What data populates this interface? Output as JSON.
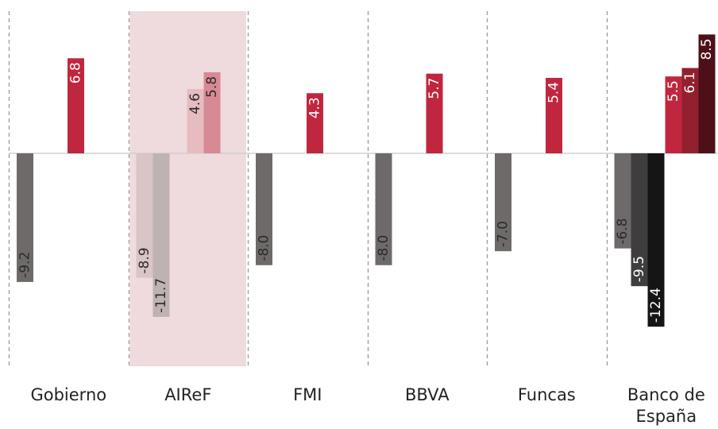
{
  "chart_data": {
    "type": "bar",
    "title": "",
    "xlabel": "",
    "ylabel": "",
    "ylim": [
      -13,
      8.9
    ],
    "grid": false,
    "categories": [
      "Gobierno",
      "AIReF",
      "FMI",
      "BBVA",
      "Funcas",
      "Banco de España"
    ],
    "highlighted_category": "AIReF",
    "groups": [
      {
        "category": "Gobierno",
        "negatives": [
          {
            "value": -9.2,
            "label": "-9.2",
            "color": "#6e6a6a"
          }
        ],
        "positives": [
          {
            "value": 6.8,
            "label": "6.8",
            "color": "#c0273e"
          }
        ]
      },
      {
        "category": "AIReF",
        "negatives": [
          {
            "value": -8.9,
            "label": "-8.9",
            "color": "#d9c4c6"
          },
          {
            "value": -11.7,
            "label": "-11.7",
            "color": "#bfb2b3"
          }
        ],
        "positives": [
          {
            "value": 4.6,
            "label": "4.6",
            "color": "#e6bcc1"
          },
          {
            "value": 5.8,
            "label": "5.8",
            "color": "#d78a94"
          }
        ]
      },
      {
        "category": "FMI",
        "negatives": [
          {
            "value": -8.0,
            "label": "-8.0",
            "color": "#6e6a6a"
          }
        ],
        "positives": [
          {
            "value": 4.3,
            "label": "4.3",
            "color": "#c0273e"
          }
        ]
      },
      {
        "category": "BBVA",
        "negatives": [
          {
            "value": -8.0,
            "label": "-8.0",
            "color": "#6e6a6a"
          }
        ],
        "positives": [
          {
            "value": 5.7,
            "label": "5.7",
            "color": "#c0273e"
          }
        ]
      },
      {
        "category": "Funcas",
        "negatives": [
          {
            "value": -7.0,
            "label": "-7.0",
            "color": "#6e6a6a"
          }
        ],
        "positives": [
          {
            "value": 5.4,
            "label": "5.4",
            "color": "#c0273e"
          }
        ]
      },
      {
        "category": "Banco de España",
        "negatives": [
          {
            "value": -6.8,
            "label": "-6.8",
            "color": "#6e6a6a"
          },
          {
            "value": -9.5,
            "label": "-9.5",
            "color": "#3f3d3d"
          },
          {
            "value": -12.4,
            "label": "-12.4",
            "color": "#161515"
          }
        ],
        "positives": [
          {
            "value": 5.5,
            "label": "5.5",
            "color": "#c0273e"
          },
          {
            "value": 6.1,
            "label": "6.1",
            "color": "#92202f"
          },
          {
            "value": 8.5,
            "label": "8.5",
            "color": "#4e1018"
          }
        ]
      }
    ],
    "colors": {
      "highlight_band": "#efdadd",
      "divider": "#a0a0a0",
      "zero_line": "#d0d0d0"
    }
  }
}
